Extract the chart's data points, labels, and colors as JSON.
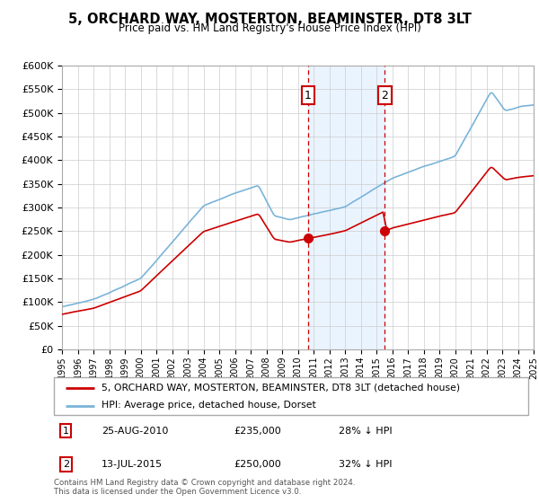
{
  "title": "5, ORCHARD WAY, MOSTERTON, BEAMINSTER, DT8 3LT",
  "subtitle": "Price paid vs. HM Land Registry's House Price Index (HPI)",
  "legend_line1": "5, ORCHARD WAY, MOSTERTON, BEAMINSTER, DT8 3LT (detached house)",
  "legend_line2": "HPI: Average price, detached house, Dorset",
  "sale1_date": "25-AUG-2010",
  "sale1_price": 235000,
  "sale1_label": "28% ↓ HPI",
  "sale2_date": "13-JUL-2015",
  "sale2_price": 250000,
  "sale2_label": "32% ↓ HPI",
  "sale1_year": 2010.65,
  "sale2_year": 2015.54,
  "footer1": "Contains HM Land Registry data © Crown copyright and database right 2024.",
  "footer2": "This data is licensed under the Open Government Licence v3.0.",
  "hpi_color": "#7ab4d8",
  "price_color": "#cc0000",
  "sale_marker_color": "#cc0000",
  "shade_color": "#ddeeff",
  "ylim": [
    0,
    600000
  ],
  "ytick_values": [
    0,
    50000,
    100000,
    150000,
    200000,
    250000,
    300000,
    350000,
    400000,
    450000,
    500000,
    550000,
    600000
  ],
  "xmin": 1995,
  "xmax": 2025
}
